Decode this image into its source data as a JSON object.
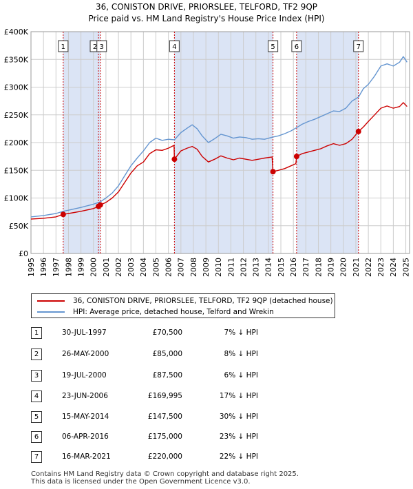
{
  "header": {
    "title_line1": "36, CONISTON DRIVE, PRIORSLEE, TELFORD, TF2 9QP",
    "title_line2": "Price paid vs. HM Land Registry's House Price Index (HPI)"
  },
  "colors": {
    "red": "#cc0000",
    "blue": "#6495d0",
    "band": "#dbe4f5",
    "grid": "#cccccc"
  },
  "chart_data": {
    "type": "line",
    "title": "36, CONISTON DRIVE, PRIORSLEE, TELFORD, TF2 9QP — Price paid vs. HM Land Registry's House Price Index (HPI)",
    "xlim": [
      1995,
      2025.3
    ],
    "ylim": [
      0,
      400000
    ],
    "y_ticks": [
      0,
      50000,
      100000,
      150000,
      200000,
      250000,
      300000,
      350000,
      400000
    ],
    "y_tick_labels": [
      "£0",
      "£50K",
      "£100K",
      "£150K",
      "£200K",
      "£250K",
      "£300K",
      "£350K",
      "£400K"
    ],
    "x_ticks": [
      1995,
      1996,
      1997,
      1998,
      1999,
      2000,
      2001,
      2002,
      2003,
      2004,
      2005,
      2006,
      2007,
      2008,
      2009,
      2010,
      2011,
      2012,
      2013,
      2014,
      2015,
      2016,
      2017,
      2018,
      2019,
      2020,
      2021,
      2022,
      2023,
      2024,
      2025
    ],
    "x_tick_labels": [
      "1995",
      "1996",
      "1997",
      "1998",
      "1999",
      "2000",
      "2001",
      "2002",
      "2003",
      "2004",
      "2005",
      "2006",
      "2007",
      "2008",
      "2009",
      "2010",
      "2011",
      "2012",
      "2013",
      "2014",
      "2015",
      "2016",
      "2017",
      "2018",
      "2019",
      "2020",
      "2021",
      "2022",
      "2023",
      "2024",
      "2025"
    ],
    "bands": [
      [
        1997.58,
        2000.55
      ],
      [
        2006.48,
        2014.37
      ],
      [
        2016.26,
        2021.21
      ]
    ],
    "series": [
      {
        "name": "36, CONISTON DRIVE, PRIORSLEE, TELFORD, TF2 9QP (detached house)",
        "color": "#cc0000",
        "points": [
          [
            1995.0,
            62000
          ],
          [
            1996.0,
            63500
          ],
          [
            1997.0,
            66000
          ],
          [
            1997.58,
            70500
          ],
          [
            1998.0,
            72000
          ],
          [
            1999.0,
            76000
          ],
          [
            2000.0,
            81000
          ],
          [
            2000.4,
            85000
          ],
          [
            2000.55,
            87500
          ],
          [
            2001.0,
            92000
          ],
          [
            2001.5,
            100000
          ],
          [
            2002.0,
            111000
          ],
          [
            2002.5,
            128000
          ],
          [
            2003.0,
            145000
          ],
          [
            2003.5,
            158000
          ],
          [
            2004.0,
            165000
          ],
          [
            2004.5,
            180000
          ],
          [
            2005.0,
            187000
          ],
          [
            2005.5,
            186000
          ],
          [
            2006.0,
            190000
          ],
          [
            2006.45,
            195000
          ],
          [
            2006.48,
            169995
          ],
          [
            2007.0,
            185000
          ],
          [
            2007.5,
            190000
          ],
          [
            2007.9,
            193000
          ],
          [
            2008.3,
            188000
          ],
          [
            2008.7,
            175000
          ],
          [
            2009.2,
            165000
          ],
          [
            2009.7,
            170000
          ],
          [
            2010.2,
            176000
          ],
          [
            2010.7,
            172000
          ],
          [
            2011.2,
            169000
          ],
          [
            2011.7,
            172000
          ],
          [
            2012.2,
            170000
          ],
          [
            2012.7,
            168000
          ],
          [
            2013.2,
            170000
          ],
          [
            2013.7,
            172000
          ],
          [
            2014.3,
            174000
          ],
          [
            2014.37,
            147500
          ],
          [
            2014.8,
            150000
          ],
          [
            2015.3,
            153000
          ],
          [
            2015.8,
            158000
          ],
          [
            2016.2,
            162000
          ],
          [
            2016.26,
            175000
          ],
          [
            2016.7,
            180000
          ],
          [
            2017.2,
            183000
          ],
          [
            2017.7,
            186000
          ],
          [
            2018.2,
            189000
          ],
          [
            2018.7,
            194000
          ],
          [
            2019.2,
            198000
          ],
          [
            2019.7,
            195000
          ],
          [
            2020.2,
            198000
          ],
          [
            2020.7,
            206000
          ],
          [
            2021.21,
            220000
          ],
          [
            2021.6,
            228000
          ],
          [
            2022.0,
            238000
          ],
          [
            2022.5,
            250000
          ],
          [
            2023.0,
            262000
          ],
          [
            2023.5,
            266000
          ],
          [
            2024.0,
            262000
          ],
          [
            2024.5,
            265000
          ],
          [
            2024.8,
            272000
          ],
          [
            2025.1,
            265000
          ]
        ]
      },
      {
        "name": "HPI: Average price, detached house, Telford and Wrekin",
        "color": "#6495d0",
        "points": [
          [
            1995.0,
            66000
          ],
          [
            1996.0,
            68500
          ],
          [
            1997.0,
            72000
          ],
          [
            1997.58,
            76000
          ],
          [
            1998.0,
            78000
          ],
          [
            1999.0,
            83000
          ],
          [
            2000.0,
            89000
          ],
          [
            2000.55,
            93000
          ],
          [
            2001.0,
            100000
          ],
          [
            2001.5,
            109000
          ],
          [
            2002.0,
            122000
          ],
          [
            2002.5,
            140000
          ],
          [
            2003.0,
            158000
          ],
          [
            2003.5,
            172000
          ],
          [
            2004.0,
            185000
          ],
          [
            2004.5,
            200000
          ],
          [
            2005.0,
            208000
          ],
          [
            2005.5,
            204000
          ],
          [
            2006.0,
            206000
          ],
          [
            2006.48,
            205000
          ],
          [
            2007.0,
            218000
          ],
          [
            2007.5,
            226000
          ],
          [
            2007.9,
            232000
          ],
          [
            2008.3,
            225000
          ],
          [
            2008.7,
            212000
          ],
          [
            2009.2,
            200000
          ],
          [
            2009.7,
            207000
          ],
          [
            2010.2,
            215000
          ],
          [
            2010.7,
            212000
          ],
          [
            2011.2,
            208000
          ],
          [
            2011.7,
            210000
          ],
          [
            2012.2,
            209000
          ],
          [
            2012.7,
            206000
          ],
          [
            2013.2,
            207000
          ],
          [
            2013.7,
            206000
          ],
          [
            2014.37,
            210000
          ],
          [
            2014.8,
            212000
          ],
          [
            2015.3,
            216000
          ],
          [
            2015.8,
            221000
          ],
          [
            2016.26,
            227000
          ],
          [
            2016.7,
            233000
          ],
          [
            2017.2,
            238000
          ],
          [
            2017.7,
            242000
          ],
          [
            2018.2,
            247000
          ],
          [
            2018.7,
            252000
          ],
          [
            2019.2,
            257000
          ],
          [
            2019.7,
            256000
          ],
          [
            2020.2,
            262000
          ],
          [
            2020.7,
            275000
          ],
          [
            2021.21,
            282000
          ],
          [
            2021.6,
            297000
          ],
          [
            2022.0,
            305000
          ],
          [
            2022.5,
            320000
          ],
          [
            2023.0,
            338000
          ],
          [
            2023.5,
            342000
          ],
          [
            2024.0,
            338000
          ],
          [
            2024.5,
            345000
          ],
          [
            2024.8,
            355000
          ],
          [
            2025.1,
            345000
          ]
        ]
      }
    ],
    "sales": [
      {
        "label": "1",
        "x": 1997.58,
        "y": 70500
      },
      {
        "label": "2",
        "x": 2000.4,
        "y": 85000
      },
      {
        "label": "3",
        "x": 2000.55,
        "y": 87500
      },
      {
        "label": "4",
        "x": 2006.48,
        "y": 169995
      },
      {
        "label": "5",
        "x": 2014.37,
        "y": 147500
      },
      {
        "label": "6",
        "x": 2016.26,
        "y": 175000
      },
      {
        "label": "7",
        "x": 2021.21,
        "y": 220000
      }
    ]
  },
  "legend": {
    "red_label": "36, CONISTON DRIVE, PRIORSLEE, TELFORD, TF2 9QP (detached house)",
    "blue_label": "HPI: Average price, detached house, Telford and Wrekin"
  },
  "transactions": [
    {
      "num": "1",
      "date": "30-JUL-1997",
      "price": "£70,500",
      "hpi": "7% ↓ HPI"
    },
    {
      "num": "2",
      "date": "26-MAY-2000",
      "price": "£85,000",
      "hpi": "8% ↓ HPI"
    },
    {
      "num": "3",
      "date": "19-JUL-2000",
      "price": "£87,500",
      "hpi": "6% ↓ HPI"
    },
    {
      "num": "4",
      "date": "23-JUN-2006",
      "price": "£169,995",
      "hpi": "17% ↓ HPI"
    },
    {
      "num": "5",
      "date": "15-MAY-2014",
      "price": "£147,500",
      "hpi": "30% ↓ HPI"
    },
    {
      "num": "6",
      "date": "06-APR-2016",
      "price": "£175,000",
      "hpi": "23% ↓ HPI"
    },
    {
      "num": "7",
      "date": "16-MAR-2021",
      "price": "£220,000",
      "hpi": "22% ↓ HPI"
    }
  ],
  "footer": {
    "line1": "Contains HM Land Registry data © Crown copyright and database right 2025.",
    "line2": "This data is licensed under the Open Government Licence v3.0."
  }
}
